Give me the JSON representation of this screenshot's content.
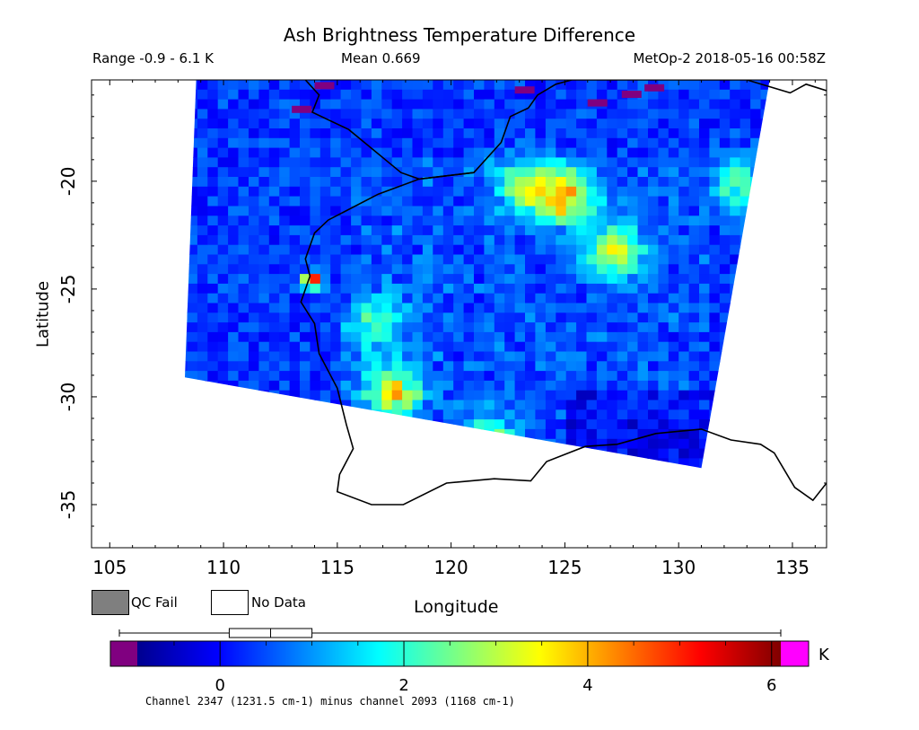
{
  "chart_data": {
    "type": "heatmap",
    "title": "Ash Brightness Temperature Difference",
    "range_text": "Range -0.9 - 6.1 K",
    "mean_text": "Mean 0.669",
    "satellite_text": "MetOp-2 2018-05-16 00:58Z",
    "xlabel": "Longitude",
    "ylabel": "Latitude",
    "xlim": [
      104.2,
      136.5
    ],
    "ylim": [
      -37.0,
      -15.3
    ],
    "x_ticks": [
      105,
      110,
      115,
      120,
      125,
      130,
      135
    ],
    "y_ticks": [
      -20,
      -25,
      -30,
      -35
    ],
    "value_range": [
      -0.9,
      6.1
    ],
    "mean": 0.669,
    "units": "K",
    "swath": {
      "corners": [
        [
          108.8,
          -15.3
        ],
        [
          134.0,
          -15.3
        ],
        [
          131.0,
          -33.3
        ],
        [
          108.3,
          -29.1
        ]
      ]
    },
    "field_features": [
      {
        "lon": 124.8,
        "lat": -20.5,
        "value": 3.6
      },
      {
        "lon": 123.0,
        "lat": -20.0,
        "value": 2.8
      },
      {
        "lon": 127.0,
        "lat": -23.0,
        "value": 2.9
      },
      {
        "lon": 113.7,
        "lat": -24.4,
        "value": 5.8
      },
      {
        "lon": 117.3,
        "lat": -29.6,
        "value": 3.4
      },
      {
        "lon": 116.5,
        "lat": -26.5,
        "value": 2.0
      },
      {
        "lon": 121.5,
        "lat": -32.0,
        "value": 2.8
      },
      {
        "lon": 132.5,
        "lat": -20.0,
        "value": 2.3
      }
    ],
    "legend": {
      "qc_fail": "QC Fail",
      "no_data": "No Data"
    },
    "colorbar": {
      "ticks": [
        0,
        2,
        4,
        6
      ],
      "tick_labels": [
        "0",
        "2",
        "4",
        "6"
      ],
      "unit_label": "K",
      "boxplot": {
        "q1": 0.1,
        "median": 0.55,
        "q3": 1.0,
        "min": -0.9,
        "max": 6.1
      }
    },
    "caption": "Channel 2347 (1231.5 cm-1) minus channel 2093 (1168 cm-1)"
  },
  "colors": {
    "background": "#ffffff",
    "qc_fail": "#7f7f7f",
    "no_data": "#ffffff",
    "below_range": "#800080",
    "above_range": "#ff00ff",
    "coastline": "#000000"
  }
}
